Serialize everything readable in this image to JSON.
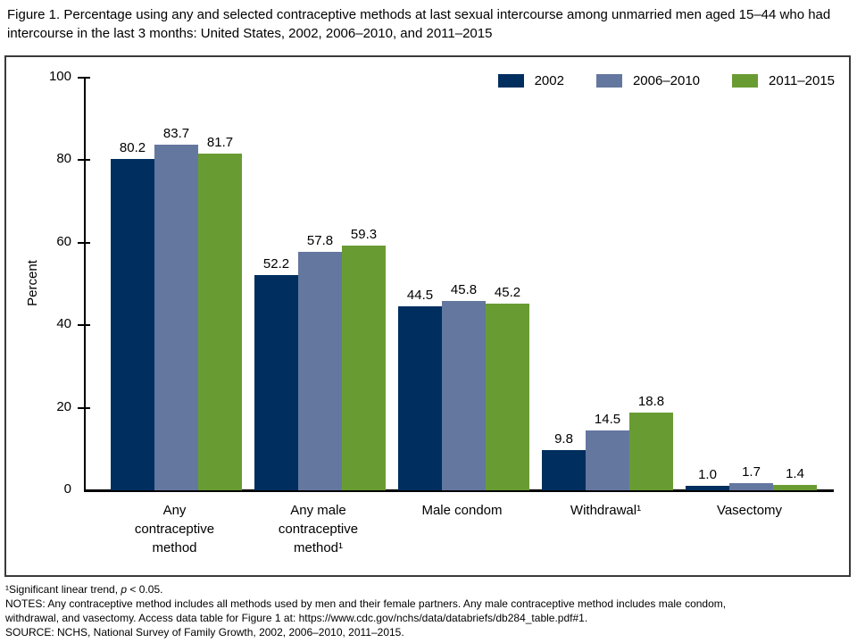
{
  "figure": {
    "title": "Figure 1. Percentage using any and selected contraceptive methods at last sexual intercourse among unmarried men aged 15–44 who had intercourse in the last 3 months: United States, 2002, 2006–2010, and 2011–2015"
  },
  "chart_data": {
    "type": "bar",
    "title": "Percentage using any and selected contraceptive methods at last sexual intercourse among unmarried men aged 15–44 who had intercourse in the last 3 months: United States, 2002, 2006–2010, and 2011–2015",
    "xlabel": "",
    "ylabel": "Percent",
    "ylim": [
      0,
      100
    ],
    "yticks": [
      0,
      20,
      40,
      60,
      80,
      100
    ],
    "grid": false,
    "legend_position": "top-right",
    "categories": [
      "Any contraceptive method",
      "Any male contraceptive method¹",
      "Male condom",
      "Withdrawal¹",
      "Vasectomy"
    ],
    "series": [
      {
        "name": "2002",
        "color": "#002f5f",
        "values": [
          80.2,
          52.2,
          44.5,
          9.8,
          1.0
        ]
      },
      {
        "name": "2006–2010",
        "color": "#64779f",
        "values": [
          83.7,
          57.8,
          45.8,
          14.5,
          1.7
        ]
      },
      {
        "name": "2011–2015",
        "color": "#699b33",
        "values": [
          81.7,
          59.3,
          45.2,
          18.8,
          1.4
        ]
      }
    ]
  },
  "footnotes": {
    "significance": {
      "prefix": "¹Significant linear trend, ",
      "italic": "p",
      "suffix": " < 0.05."
    },
    "lines": [
      "NOTES: Any contraceptive method includes all methods used by men and their female partners. Any male contraceptive method includes male condom,",
      "withdrawal, and vasectomy. Access data table for Figure 1 at: https://www.cdc.gov/nchs/data/databriefs/db284_table.pdf#1.",
      "SOURCE: NCHS, National Survey of Family Growth, 2002, 2006–2010, 2011–2015."
    ]
  }
}
